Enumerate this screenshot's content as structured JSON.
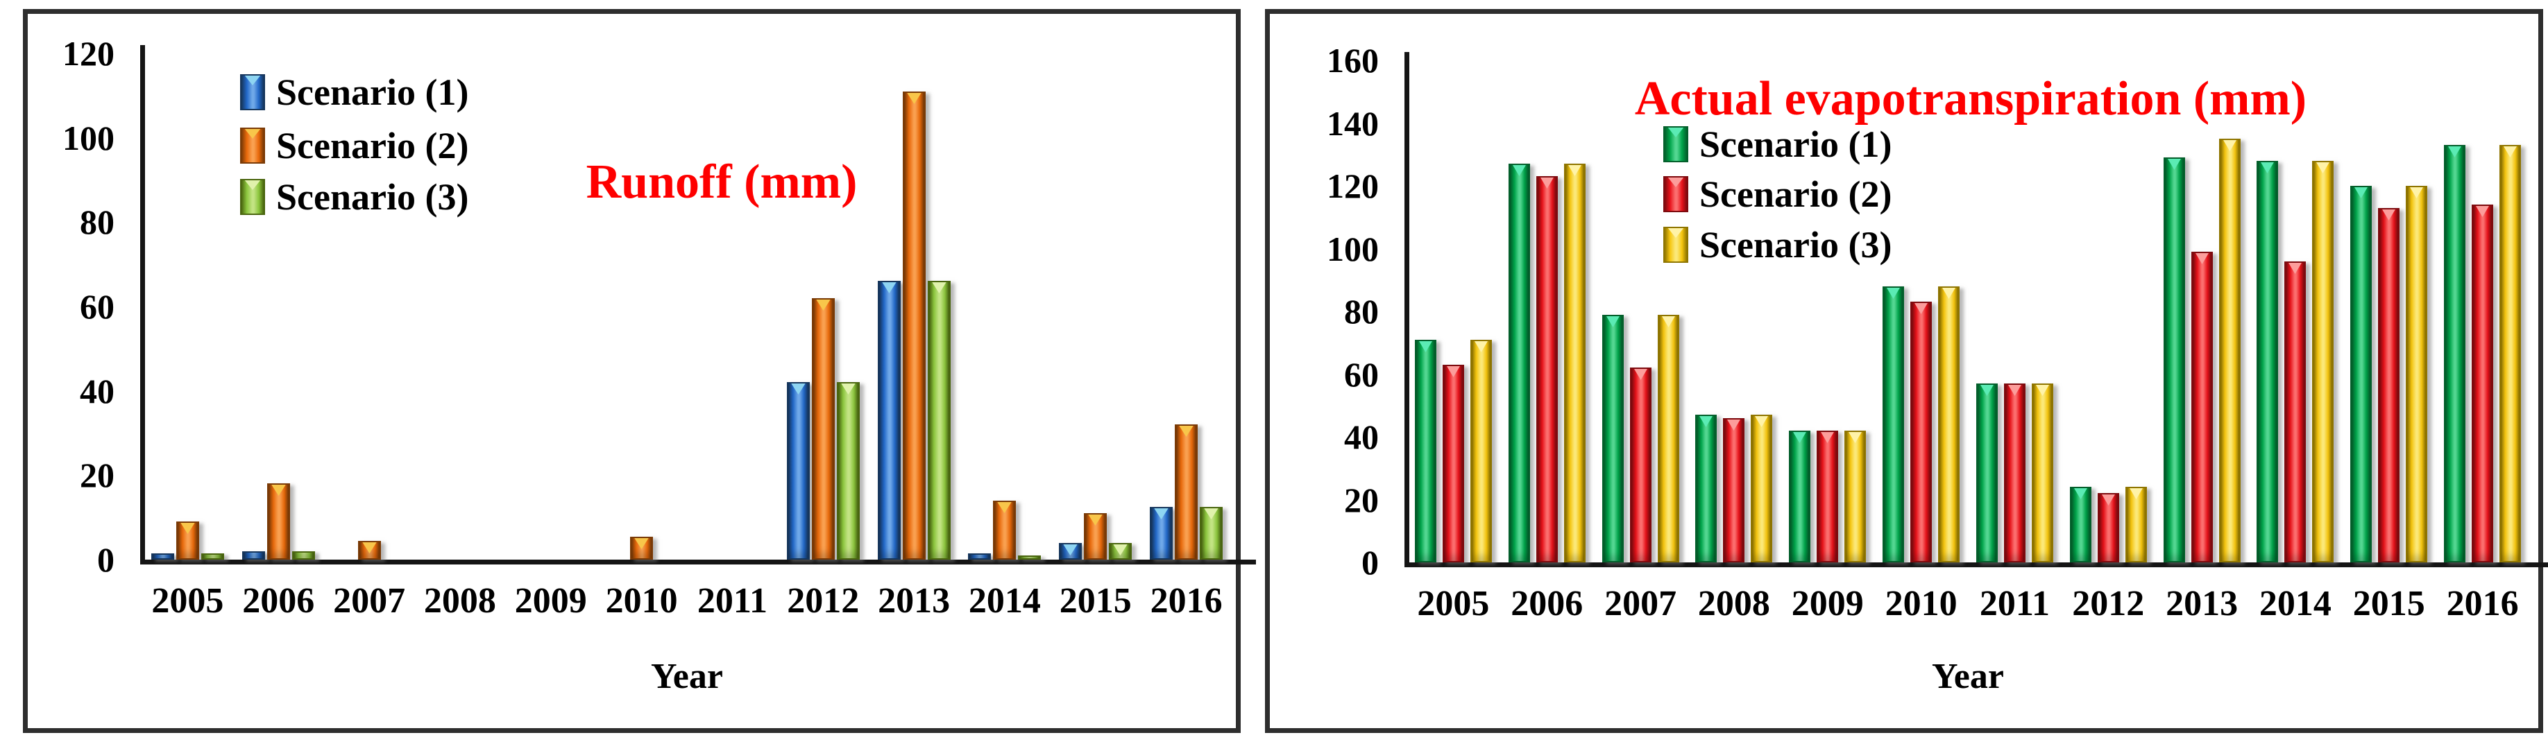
{
  "chart_data": [
    {
      "type": "bar",
      "title": "Runoff (mm)",
      "title_color": "#FE0000",
      "xlabel": "Year",
      "ylabel": "",
      "ylim": [
        0,
        120
      ],
      "yticks": [
        0,
        20,
        40,
        60,
        80,
        100,
        120
      ],
      "grid": "off",
      "legend_position": "inside-upper-left",
      "categories": [
        "2005",
        "2006",
        "2007",
        "2008",
        "2009",
        "2010",
        "2011",
        "2012",
        "2013",
        "2014",
        "2015",
        "2016"
      ],
      "series": [
        {
          "name": "Scenario (1)",
          "color_key": "runoff_s1",
          "values": [
            1.5,
            2,
            0,
            0,
            0,
            0,
            0,
            42,
            66,
            1.5,
            4,
            12.5
          ]
        },
        {
          "name": "Scenario (2)",
          "color_key": "runoff_s2",
          "values": [
            9,
            18,
            4.5,
            0,
            0,
            5.5,
            0,
            62,
            111,
            14,
            11,
            32
          ]
        },
        {
          "name": "Scenario (3)",
          "color_key": "runoff_s3",
          "values": [
            1.5,
            2,
            0,
            0,
            0,
            0,
            0,
            42,
            66,
            1,
            4,
            12.5
          ]
        }
      ]
    },
    {
      "type": "bar",
      "title": "Actual evapotranspiration (mm)",
      "title_color": "#FE0000",
      "xlabel": "Year",
      "ylabel": "",
      "ylim": [
        0,
        160
      ],
      "yticks": [
        0,
        20,
        40,
        60,
        80,
        100,
        120,
        140,
        160
      ],
      "grid": "off",
      "legend_position": "inside-upper-center",
      "categories": [
        "2005",
        "2006",
        "2007",
        "2008",
        "2009",
        "2010",
        "2011",
        "2012",
        "2013",
        "2014",
        "2015",
        "2016"
      ],
      "series": [
        {
          "name": "Scenario (1)",
          "color_key": "aet_s1",
          "values": [
            71,
            127,
            79,
            47,
            42,
            88,
            57,
            24,
            129,
            128,
            120,
            133
          ]
        },
        {
          "name": "Scenario (2)",
          "color_key": "aet_s2",
          "values": [
            63,
            123,
            62,
            46,
            42,
            83,
            57,
            22,
            99,
            96,
            113,
            114
          ]
        },
        {
          "name": "Scenario (3)",
          "color_key": "aet_s3",
          "values": [
            71,
            127,
            79,
            47,
            42,
            88,
            57,
            24,
            135,
            128,
            120,
            133
          ]
        }
      ]
    }
  ],
  "palette": {
    "runoff_s1": {
      "edge": "#16365C",
      "mid": "#2268C8",
      "light": "#6FA8E8",
      "cap": "#8ED5F2"
    },
    "runoff_s2": {
      "edge": "#7A3A06",
      "mid": "#E8690B",
      "light": "#F9A050",
      "cap": "#F8C64A"
    },
    "runoff_s3": {
      "edge": "#4A660F",
      "mid": "#8CC63E",
      "light": "#C2E383",
      "cap": "#E0F2AC"
    },
    "aet_s1": {
      "edge": "#035F2B",
      "mid": "#00A44A",
      "light": "#53D691",
      "cap": "#5BEBB4"
    },
    "aet_s2": {
      "edge": "#7E0A0E",
      "mid": "#E8121A",
      "light": "#FB6E6E",
      "cap": "#FC9D9B"
    },
    "aet_s3": {
      "edge": "#8F7500",
      "mid": "#F6C60F",
      "light": "#FBE878",
      "cap": "#FFF3A8"
    }
  },
  "axis_color": "#151515",
  "panel_border_color": "#2e2e2e"
}
